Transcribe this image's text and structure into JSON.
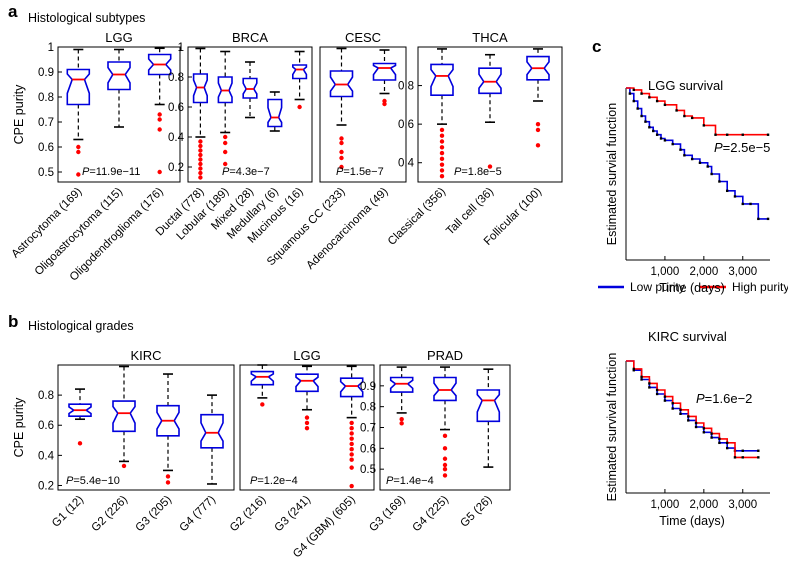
{
  "panel_labels": {
    "a": "a",
    "b": "b",
    "c": "c"
  },
  "sections": {
    "subtypes": "Histological subtypes",
    "grades": "Histological grades"
  },
  "colors": {
    "box": "#0000dd",
    "median": "#ff0000",
    "outlier": "#ff0000",
    "whisker": "#000000",
    "low_purity": "#0000dd",
    "high_purity": "#ff0000"
  },
  "chart_data": [
    {
      "type": "box",
      "title": "LGG",
      "ylabel": "CPE purity",
      "ylim": [
        0.46,
        1.0
      ],
      "yticks": [
        "0.5",
        "0.6",
        "0.7",
        "0.8",
        "0.9",
        "1"
      ],
      "categories": [
        "Astrocytoma (169)",
        "Oligoastrocytoma (115)",
        "Oligodendroglioma (176)"
      ],
      "pvalue": {
        "label": "P",
        "value": "=11.9e−11"
      },
      "boxes": [
        {
          "wlow": 0.63,
          "q1": 0.77,
          "med": 0.87,
          "q3": 0.91,
          "whigh": 0.99,
          "outliers": [
            0.49,
            0.58,
            0.6
          ]
        },
        {
          "wlow": 0.68,
          "q1": 0.83,
          "med": 0.89,
          "q3": 0.94,
          "whigh": 0.99,
          "outliers": []
        },
        {
          "wlow": 0.77,
          "q1": 0.89,
          "med": 0.93,
          "q3": 0.97,
          "whigh": 0.995,
          "outliers": [
            0.67,
            0.71,
            0.73,
            0.5
          ]
        }
      ]
    },
    {
      "type": "box",
      "title": "BRCA",
      "ylabel": "",
      "ylim": [
        0.1,
        1.0
      ],
      "yticks": [
        "0.2",
        "0.4",
        "0.6",
        "0.8",
        "1"
      ],
      "categories": [
        "Ductal (778)",
        "Lobular (189)",
        "Mixed (28)",
        "Medullary (6)",
        "Mucinous (16)"
      ],
      "pvalue": {
        "label": "P",
        "value": "=4.3e−7"
      },
      "boxes": [
        {
          "wlow": 0.4,
          "q1": 0.63,
          "med": 0.73,
          "q3": 0.82,
          "whigh": 0.99,
          "outliers": [
            0.13,
            0.16,
            0.19,
            0.22,
            0.25,
            0.28,
            0.31,
            0.34,
            0.37
          ]
        },
        {
          "wlow": 0.43,
          "q1": 0.63,
          "med": 0.71,
          "q3": 0.8,
          "whigh": 0.97,
          "outliers": [
            0.22,
            0.3,
            0.36,
            0.4
          ]
        },
        {
          "wlow": 0.53,
          "q1": 0.66,
          "med": 0.72,
          "q3": 0.79,
          "whigh": 0.9,
          "outliers": []
        },
        {
          "wlow": 0.44,
          "q1": 0.47,
          "med": 0.53,
          "q3": 0.65,
          "whigh": 0.7,
          "outliers": []
        },
        {
          "wlow": 0.65,
          "q1": 0.79,
          "med": 0.85,
          "q3": 0.88,
          "whigh": 0.97,
          "outliers": [
            0.6
          ]
        }
      ]
    },
    {
      "type": "box",
      "title": "CESC",
      "ylabel": "",
      "ylim": [
        0.1,
        1.0
      ],
      "yticks": [],
      "categories": [
        "Squamous CC (233)",
        "Adenocarcinoma (49)"
      ],
      "pvalue": {
        "label": "P",
        "value": "=1.5e−7"
      },
      "boxes": [
        {
          "wlow": 0.48,
          "q1": 0.67,
          "med": 0.75,
          "q3": 0.84,
          "whigh": 0.99,
          "outliers": [
            0.2,
            0.26,
            0.3,
            0.36,
            0.39
          ]
        },
        {
          "wlow": 0.69,
          "q1": 0.78,
          "med": 0.86,
          "q3": 0.89,
          "whigh": 0.98,
          "outliers": [
            0.62,
            0.64
          ]
        }
      ]
    },
    {
      "type": "box",
      "title": "THCA",
      "ylabel": "",
      "ylim": [
        0.3,
        1.0
      ],
      "yticks": [
        "0.4",
        "0.6",
        "0.8"
      ],
      "categories": [
        "Classical (356)",
        "Tall cell (36)",
        "Follicular (100)"
      ],
      "pvalue": {
        "label": "P",
        "value": "=1.8e−5"
      },
      "boxes": [
        {
          "wlow": 0.6,
          "q1": 0.75,
          "med": 0.85,
          "q3": 0.91,
          "whigh": 0.99,
          "outliers": [
            0.33,
            0.36,
            0.39,
            0.42,
            0.45,
            0.48,
            0.51,
            0.54,
            0.57
          ]
        },
        {
          "wlow": 0.61,
          "q1": 0.76,
          "med": 0.82,
          "q3": 0.89,
          "whigh": 0.96,
          "outliers": [
            0.38
          ]
        },
        {
          "wlow": 0.72,
          "q1": 0.83,
          "med": 0.89,
          "q3": 0.95,
          "whigh": 0.99,
          "outliers": [
            0.49,
            0.57,
            0.6
          ]
        }
      ]
    },
    {
      "type": "box",
      "title": "KIRC",
      "ylabel": "CPE purity",
      "ylim": [
        0.17,
        1.0
      ],
      "yticks": [
        "0.2",
        "0.4",
        "0.6",
        "0.8"
      ],
      "categories": [
        "G1 (12)",
        "G2 (226)",
        "G3 (205)",
        "G4 (777)"
      ],
      "pvalue": {
        "label": "P",
        "value": "=5.4e−10"
      },
      "boxes": [
        {
          "wlow": 0.64,
          "q1": 0.66,
          "med": 0.7,
          "q3": 0.74,
          "whigh": 0.84,
          "outliers": [
            0.48
          ]
        },
        {
          "wlow": 0.36,
          "q1": 0.56,
          "med": 0.68,
          "q3": 0.76,
          "whigh": 0.99,
          "outliers": [
            0.33
          ]
        },
        {
          "wlow": 0.3,
          "q1": 0.53,
          "med": 0.63,
          "q3": 0.73,
          "whigh": 0.94,
          "outliers": [
            0.22,
            0.26
          ]
        },
        {
          "wlow": 0.21,
          "q1": 0.45,
          "med": 0.55,
          "q3": 0.67,
          "whigh": 0.8,
          "outliers": []
        }
      ]
    },
    {
      "type": "box",
      "title": "LGG",
      "ylabel": "",
      "ylim": [
        0.05,
        1.0
      ],
      "yticks": [],
      "categories": [
        "G2 (216)",
        "G3 (241)",
        "G4 (GBM) (605)"
      ],
      "pvalue": {
        "label": "P",
        "value": "=1.2e−4"
      },
      "boxes": [
        {
          "wlow": 0.75,
          "q1": 0.85,
          "med": 0.91,
          "q3": 0.95,
          "whigh": 1.0,
          "outliers": [
            0.7
          ]
        },
        {
          "wlow": 0.66,
          "q1": 0.8,
          "med": 0.88,
          "q3": 0.93,
          "whigh": 0.99,
          "outliers": [
            0.52,
            0.56,
            0.6
          ]
        },
        {
          "wlow": 0.6,
          "q1": 0.76,
          "med": 0.84,
          "q3": 0.9,
          "whigh": 0.99,
          "outliers": [
            0.08,
            0.22,
            0.28,
            0.32,
            0.36,
            0.4,
            0.44,
            0.48,
            0.52,
            0.56
          ]
        }
      ]
    },
    {
      "type": "box",
      "title": "PRAD",
      "ylabel": "",
      "ylim": [
        0.4,
        1.0
      ],
      "yticks": [
        "0.5",
        "0.6",
        "0.7",
        "0.8",
        "0.9"
      ],
      "categories": [
        "G3 (169)",
        "G4 (225)",
        "G5 (26)"
      ],
      "pvalue": {
        "label": "P",
        "value": "=1.4e−4"
      },
      "boxes": [
        {
          "wlow": 0.77,
          "q1": 0.87,
          "med": 0.91,
          "q3": 0.94,
          "whigh": 0.99,
          "outliers": [
            0.72,
            0.74
          ]
        },
        {
          "wlow": 0.69,
          "q1": 0.83,
          "med": 0.88,
          "q3": 0.94,
          "whigh": 0.99,
          "outliers": [
            0.47,
            0.5,
            0.52,
            0.55,
            0.6,
            0.66
          ]
        },
        {
          "wlow": 0.51,
          "q1": 0.73,
          "med": 0.83,
          "q3": 0.88,
          "whigh": 0.98,
          "outliers": []
        }
      ]
    },
    {
      "type": "line",
      "title": "LGG survival",
      "xlabel": "Time (days)",
      "ylabel": "Estimated survial function",
      "xlim": [
        0,
        3700
      ],
      "ylim": [
        0.08,
        1.0
      ],
      "xticks": [
        "1,000",
        "2,000",
        "3,000"
      ],
      "xtick_values": [
        1000,
        2000,
        3000
      ],
      "pvalue": {
        "label": "P",
        "value": "=2.5e−5"
      },
      "series": [
        {
          "name": "Low purity",
          "x": [
            0,
            100,
            200,
            300,
            400,
            500,
            600,
            700,
            800,
            900,
            1000,
            1200,
            1400,
            1500,
            1700,
            1900,
            2100,
            2200,
            2400,
            2600,
            2800,
            3000,
            3200,
            3400,
            3650
          ],
          "y": [
            1.0,
            0.97,
            0.93,
            0.89,
            0.85,
            0.82,
            0.79,
            0.77,
            0.75,
            0.73,
            0.72,
            0.7,
            0.67,
            0.64,
            0.62,
            0.6,
            0.58,
            0.54,
            0.5,
            0.45,
            0.42,
            0.38,
            0.38,
            0.3,
            0.3
          ]
        },
        {
          "name": "High purity",
          "x": [
            0,
            200,
            400,
            600,
            800,
            1000,
            1300,
            1500,
            1700,
            2000,
            2300,
            2600,
            3000,
            3650
          ],
          "y": [
            1.0,
            0.99,
            0.97,
            0.95,
            0.93,
            0.91,
            0.88,
            0.85,
            0.84,
            0.8,
            0.75,
            0.75,
            0.75,
            0.75
          ]
        }
      ]
    },
    {
      "type": "line",
      "title": "KIRC survival",
      "xlabel": "Time (days)",
      "ylabel": "Estimated survival function",
      "xlim": [
        0,
        3700
      ],
      "ylim": [
        0.0,
        1.0
      ],
      "xticks": [
        "1,000",
        "2,000",
        "3,000"
      ],
      "xtick_values": [
        1000,
        2000,
        3000
      ],
      "pvalue": {
        "label": "P",
        "value": "=1.6e−2"
      },
      "series": [
        {
          "name": "Low purity",
          "x": [
            0,
            200,
            400,
            600,
            800,
            1000,
            1200,
            1400,
            1600,
            1800,
            2000,
            2200,
            2400,
            2600,
            2800,
            3000,
            3400
          ],
          "y": [
            1.0,
            0.93,
            0.86,
            0.8,
            0.75,
            0.7,
            0.64,
            0.6,
            0.55,
            0.5,
            0.46,
            0.42,
            0.38,
            0.34,
            0.32,
            0.32,
            0.32
          ]
        },
        {
          "name": "High purity",
          "x": [
            0,
            200,
            400,
            600,
            800,
            1000,
            1200,
            1400,
            1600,
            1800,
            2000,
            2200,
            2400,
            2600,
            2800,
            3000,
            3400
          ],
          "y": [
            1.0,
            0.94,
            0.88,
            0.83,
            0.78,
            0.73,
            0.68,
            0.63,
            0.58,
            0.53,
            0.49,
            0.45,
            0.41,
            0.38,
            0.27,
            0.27,
            0.27
          ]
        }
      ]
    }
  ],
  "legend": {
    "low": "Low purity",
    "high": "High purity"
  }
}
